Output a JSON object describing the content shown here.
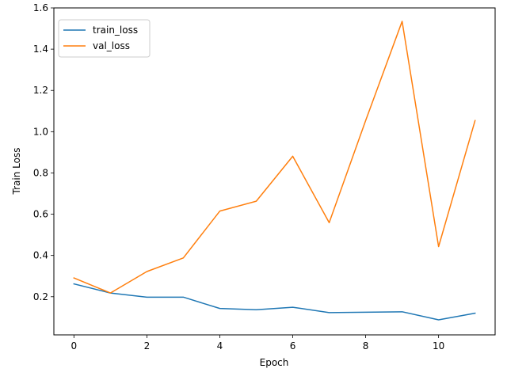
{
  "chart_data": {
    "type": "line",
    "title": "",
    "xlabel": "Epoch",
    "ylabel": "Train Loss",
    "x": [
      0,
      1,
      2,
      3,
      4,
      5,
      6,
      7,
      8,
      9,
      10,
      11
    ],
    "xlim": [
      -0.55,
      11.55
    ],
    "ylim": [
      0.015,
      1.6
    ],
    "xticks": [
      0,
      2,
      4,
      6,
      8,
      10
    ],
    "yticks": [
      0.2,
      0.4,
      0.6,
      0.8,
      1.0,
      1.2,
      1.4,
      1.6
    ],
    "ytick_labels": [
      "0.2",
      "0.4",
      "0.6",
      "0.8",
      "1.0",
      "1.2",
      "1.4",
      "1.6"
    ],
    "grid": false,
    "legend_position": "top-left",
    "series": [
      {
        "name": "train_loss",
        "color": "#1f77b4",
        "values": [
          0.262,
          0.218,
          0.198,
          0.198,
          0.143,
          0.137,
          0.149,
          0.123,
          0.125,
          0.127,
          0.088,
          0.12
        ]
      },
      {
        "name": "val_loss",
        "color": "#ff7f0e",
        "values": [
          0.291,
          0.218,
          0.322,
          0.388,
          0.615,
          0.663,
          0.881,
          0.559,
          1.054,
          1.535,
          0.443,
          1.054
        ]
      }
    ]
  }
}
